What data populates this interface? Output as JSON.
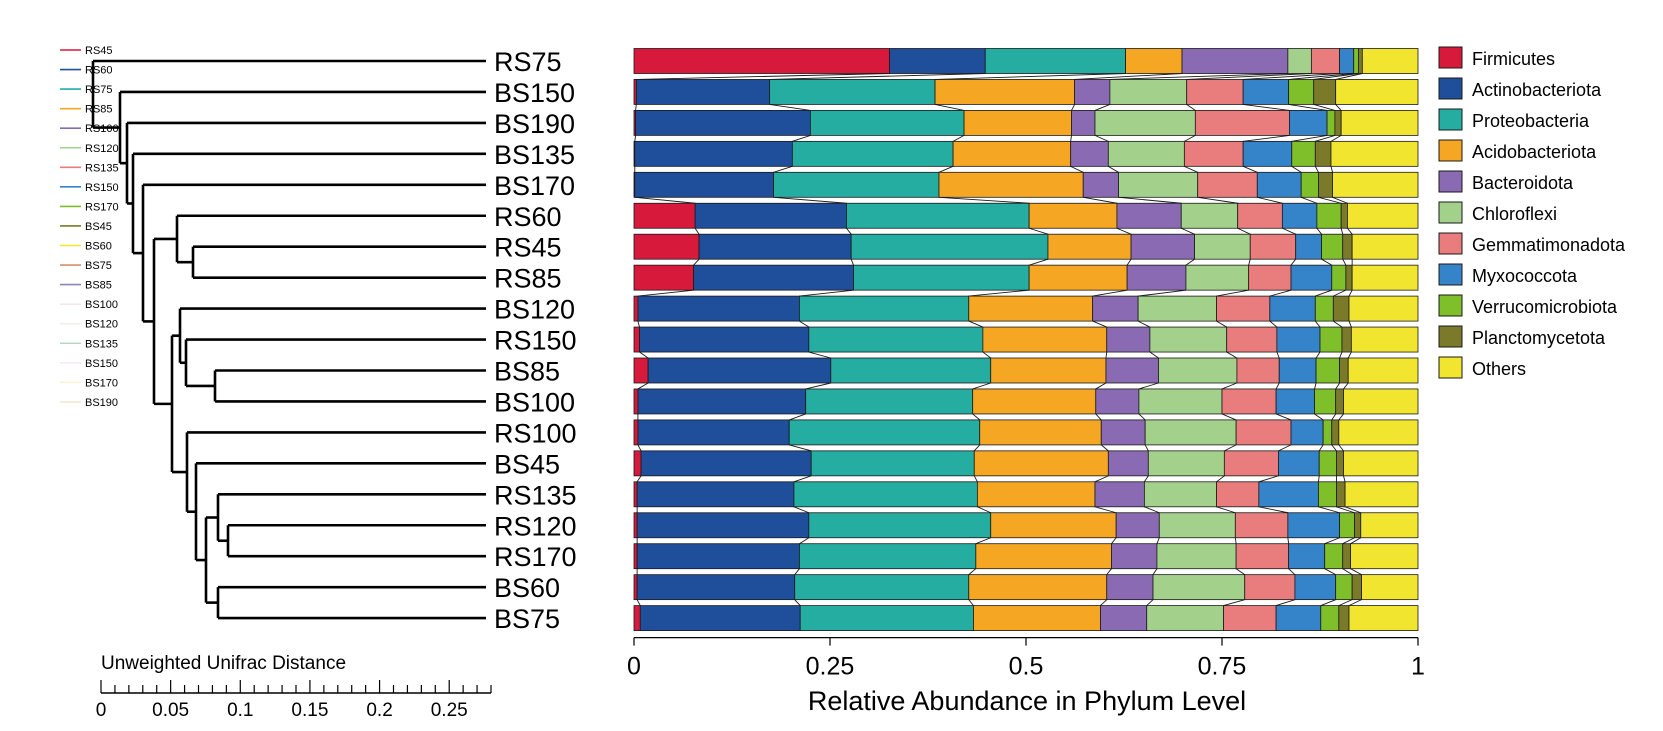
{
  "dendro_legend": {
    "labels": [
      "RS45",
      "RS60",
      "RS75",
      "RS85",
      "RS100",
      "RS120",
      "RS135",
      "RS150",
      "RS170",
      "BS45",
      "BS60",
      "BS75",
      "BS85",
      "BS100",
      "BS120",
      "BS135",
      "BS150",
      "BS170",
      "BS190"
    ],
    "colors": [
      "#d7193b",
      "#1f4e9a",
      "#24ada0",
      "#f5a623",
      "#8a6bb3",
      "#a3d18b",
      "#e97c7c",
      "#3584c9",
      "#7fbf2a",
      "#7a7a2a",
      "#f2e52f",
      "#d2906a",
      "#8a86c0",
      "#f3e6ea",
      "#eef2e6",
      "#b8d6c2",
      "#f4ecf2",
      "#f8f2d6",
      "#f3ead2"
    ]
  },
  "chart_data": [
    {
      "type": "dendrogram",
      "title": "Unweighted Unifrac Distance",
      "tick_labels": [
        "0",
        "0.05",
        "0.1",
        "0.15",
        "0.2",
        "0.25"
      ],
      "xlim": [
        0,
        0.28
      ],
      "leaf_order": [
        "RS75",
        "BS150",
        "BS190",
        "BS135",
        "BS170",
        "RS60",
        "RS45",
        "RS85",
        "BS120",
        "RS150",
        "BS85",
        "BS100",
        "RS100",
        "BS45",
        "RS135",
        "RS120",
        "RS170",
        "BS60",
        "BS75"
      ]
    },
    {
      "type": "bar",
      "orientation": "horizontal",
      "stacked": true,
      "xlabel": "Relative Abundance in Phylum Level",
      "xlim": [
        0,
        1
      ],
      "tick_labels": [
        "0",
        "0.25",
        "0.5",
        "0.75",
        "1"
      ],
      "legend_position": "right",
      "categories": [
        "RS75",
        "BS150",
        "BS190",
        "BS135",
        "BS170",
        "RS60",
        "RS45",
        "RS85",
        "BS120",
        "RS150",
        "BS85",
        "BS100",
        "RS100",
        "BS45",
        "RS135",
        "RS120",
        "RS170",
        "BS60",
        "BS75"
      ],
      "series": [
        {
          "name": "Firmicutes",
          "color": "#d7193b",
          "values": [
            0.326,
            0.003,
            0.002,
            0.001,
            0.001,
            0.078,
            0.083,
            0.076,
            0.005,
            0.007,
            0.018,
            0.005,
            0.005,
            0.009,
            0.004,
            0.004,
            0.004,
            0.004,
            0.008
          ]
        },
        {
          "name": "Actinobacteriota",
          "color": "#1f4e9a",
          "values": [
            0.122,
            0.17,
            0.223,
            0.201,
            0.177,
            0.193,
            0.194,
            0.204,
            0.206,
            0.216,
            0.233,
            0.214,
            0.193,
            0.217,
            0.2,
            0.219,
            0.207,
            0.201,
            0.204
          ]
        },
        {
          "name": "Proteobacteria",
          "color": "#24ada0",
          "values": [
            0.179,
            0.211,
            0.196,
            0.205,
            0.211,
            0.233,
            0.251,
            0.224,
            0.216,
            0.222,
            0.204,
            0.213,
            0.243,
            0.208,
            0.234,
            0.232,
            0.225,
            0.222,
            0.221
          ]
        },
        {
          "name": "Acidobacteriota",
          "color": "#f5a623",
          "values": [
            0.072,
            0.178,
            0.137,
            0.15,
            0.184,
            0.112,
            0.106,
            0.125,
            0.158,
            0.158,
            0.147,
            0.157,
            0.155,
            0.171,
            0.15,
            0.16,
            0.173,
            0.176,
            0.162
          ]
        },
        {
          "name": "Bacteroidota",
          "color": "#8a6bb3",
          "values": [
            0.135,
            0.045,
            0.03,
            0.048,
            0.045,
            0.082,
            0.081,
            0.075,
            0.058,
            0.055,
            0.067,
            0.055,
            0.056,
            0.051,
            0.063,
            0.055,
            0.058,
            0.059,
            0.059
          ]
        },
        {
          "name": "Chloroflexi",
          "color": "#a3d18b",
          "values": [
            0.03,
            0.098,
            0.128,
            0.097,
            0.101,
            0.072,
            0.071,
            0.08,
            0.1,
            0.098,
            0.1,
            0.106,
            0.116,
            0.097,
            0.092,
            0.097,
            0.101,
            0.117,
            0.098
          ]
        },
        {
          "name": "Gemmatimonadota",
          "color": "#e97c7c",
          "values": [
            0.036,
            0.072,
            0.12,
            0.075,
            0.076,
            0.057,
            0.058,
            0.054,
            0.068,
            0.064,
            0.054,
            0.069,
            0.07,
            0.069,
            0.054,
            0.067,
            0.067,
            0.064,
            0.067
          ]
        },
        {
          "name": "Myxococcota",
          "color": "#3584c9",
          "values": [
            0.018,
            0.058,
            0.048,
            0.062,
            0.056,
            0.044,
            0.033,
            0.052,
            0.058,
            0.055,
            0.047,
            0.049,
            0.041,
            0.052,
            0.076,
            0.066,
            0.046,
            0.052,
            0.057
          ]
        },
        {
          "name": "Verrucomicrobiota",
          "color": "#7fbf2a",
          "values": [
            0.006,
            0.032,
            0.01,
            0.03,
            0.022,
            0.031,
            0.027,
            0.018,
            0.023,
            0.028,
            0.03,
            0.027,
            0.011,
            0.022,
            0.023,
            0.019,
            0.023,
            0.021,
            0.023
          ]
        },
        {
          "name": "Planctomycetota",
          "color": "#7a7a2a",
          "values": [
            0.005,
            0.028,
            0.008,
            0.02,
            0.018,
            0.008,
            0.012,
            0.008,
            0.02,
            0.012,
            0.011,
            0.01,
            0.009,
            0.009,
            0.011,
            0.008,
            0.01,
            0.012,
            0.013
          ]
        },
        {
          "name": "Others",
          "color": "#f2e52f",
          "values": [
            0.071,
            0.105,
            0.098,
            0.111,
            0.109,
            0.09,
            0.084,
            0.084,
            0.088,
            0.085,
            0.089,
            0.095,
            0.101,
            0.095,
            0.093,
            0.073,
            0.086,
            0.072,
            0.088
          ]
        }
      ]
    }
  ]
}
